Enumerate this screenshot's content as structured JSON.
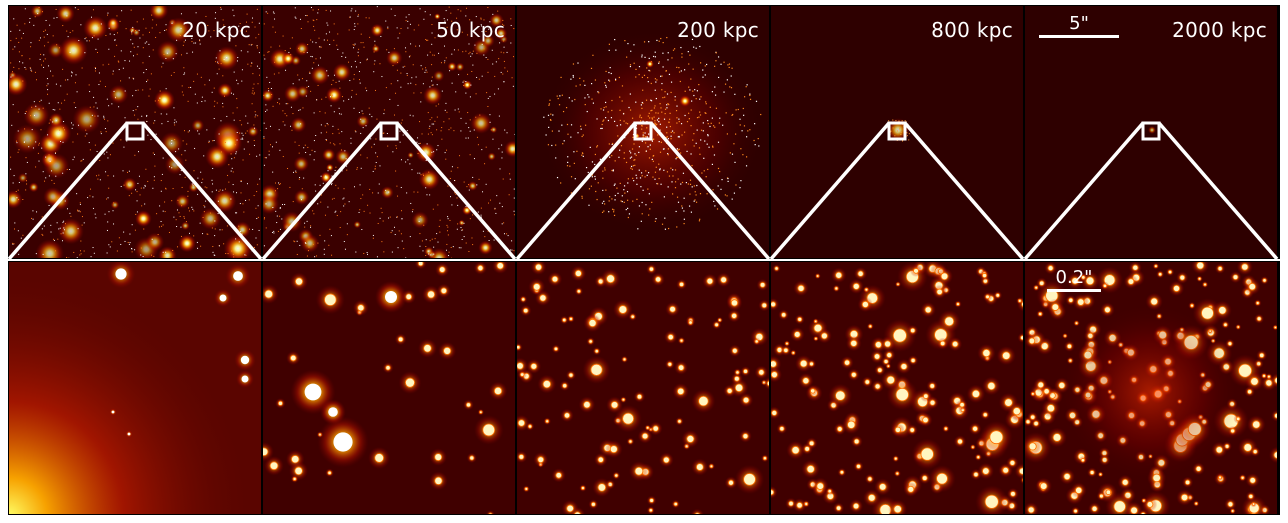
{
  "panels": [
    {
      "label": "20 kpc"
    },
    {
      "label": "50 kpc"
    },
    {
      "label": "200 kpc"
    },
    {
      "label": "800 kpc"
    },
    {
      "label": "2000 kpc"
    }
  ],
  "scalebars": {
    "top": "5\"",
    "bottom": "0.2\""
  },
  "colors": {
    "background": "#2a0000",
    "colormap": "hot",
    "frame": "#ffffff"
  }
}
